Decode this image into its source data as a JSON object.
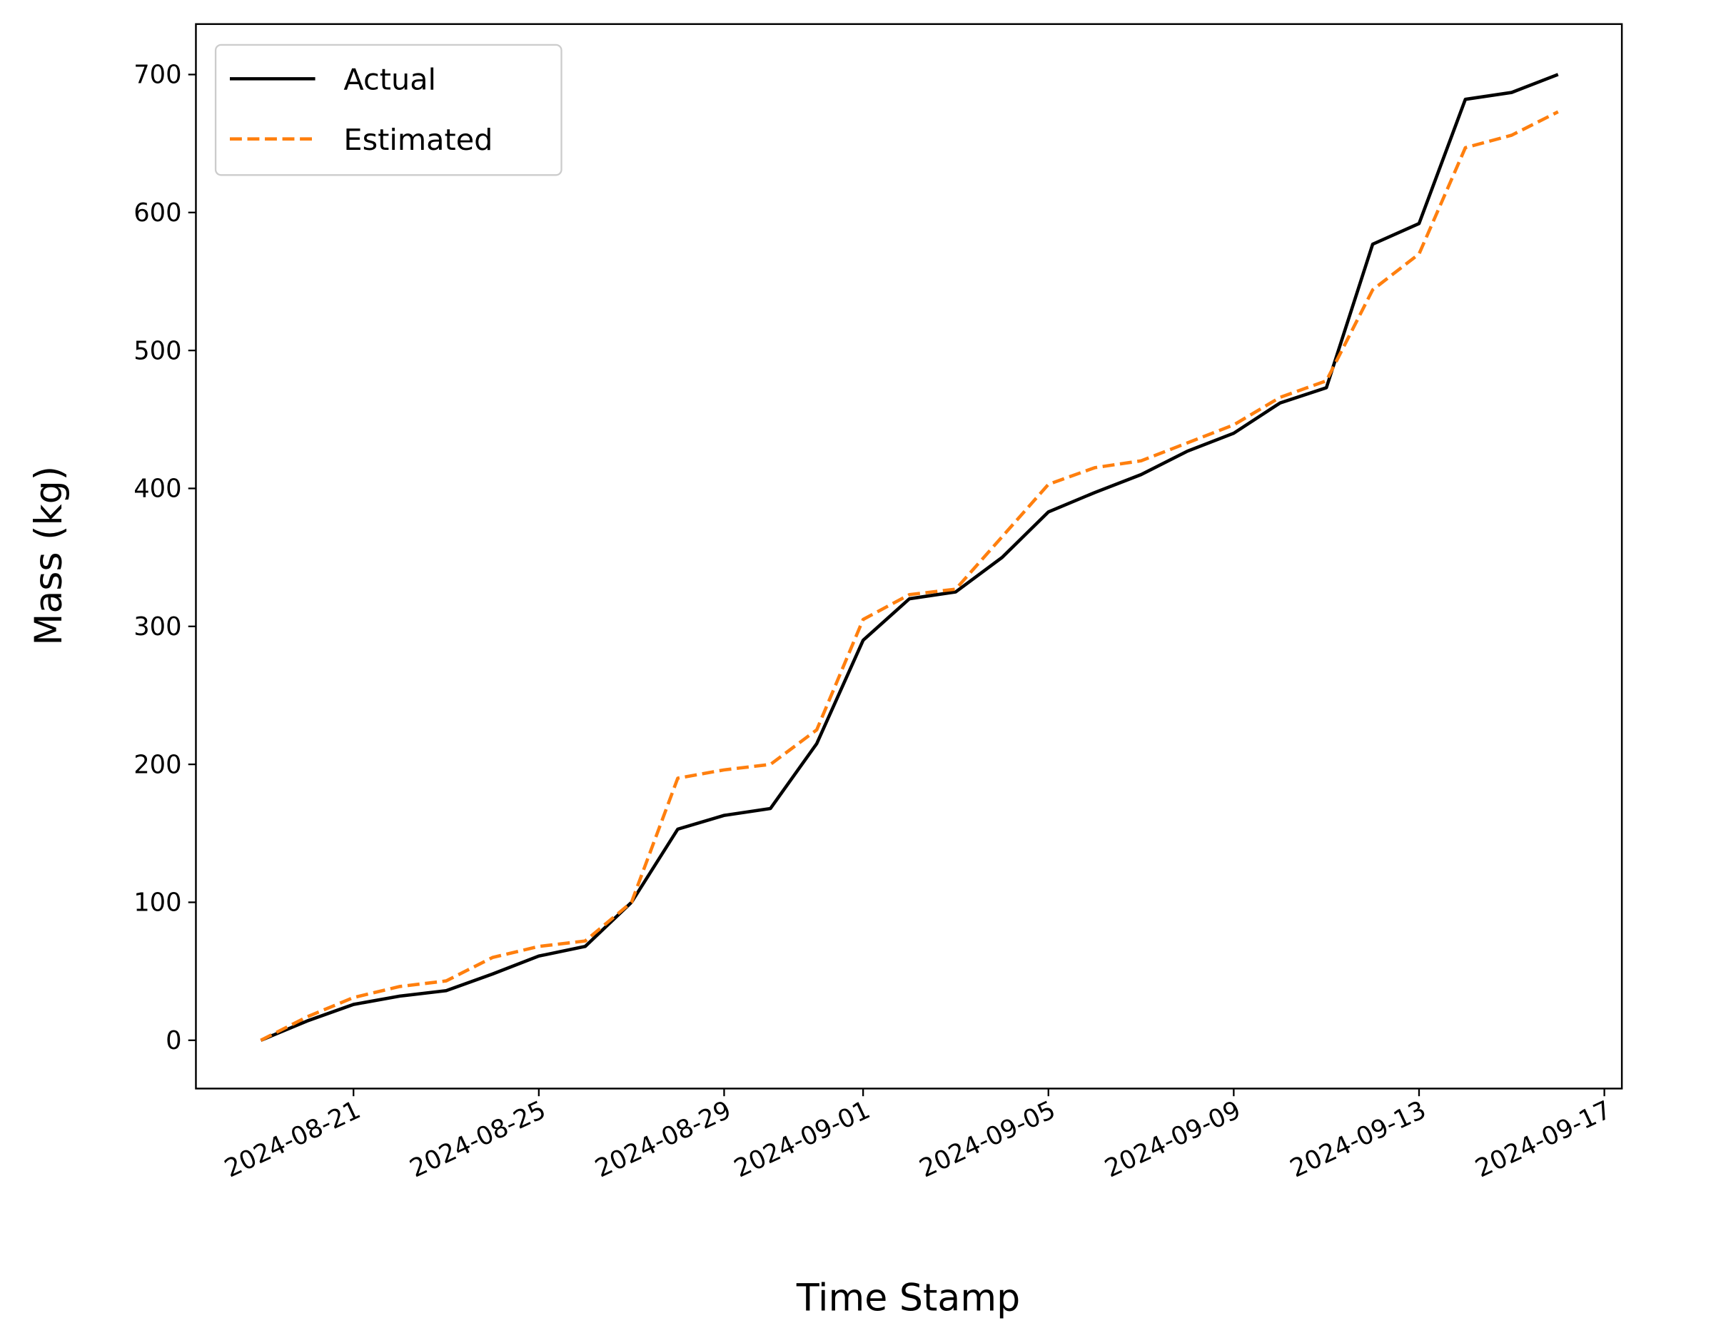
{
  "chart_data": {
    "type": "line",
    "xlabel": "Time Stamp",
    "ylabel": "Mass (kg)",
    "x": [
      "2024-08-19",
      "2024-08-20",
      "2024-08-21",
      "2024-08-22",
      "2024-08-23",
      "2024-08-24",
      "2024-08-25",
      "2024-08-26",
      "2024-08-27",
      "2024-08-28",
      "2024-08-29",
      "2024-08-30",
      "2024-08-31",
      "2024-09-01",
      "2024-09-02",
      "2024-09-03",
      "2024-09-04",
      "2024-09-05",
      "2024-09-06",
      "2024-09-07",
      "2024-09-08",
      "2024-09-09",
      "2024-09-10",
      "2024-09-11",
      "2024-09-12",
      "2024-09-13",
      "2024-09-14",
      "2024-09-15",
      "2024-09-16"
    ],
    "series": [
      {
        "name": "Actual",
        "color": "#000000",
        "dashed": false,
        "values": [
          0,
          14,
          26,
          32,
          36,
          48,
          61,
          68,
          100,
          153,
          163,
          168,
          215,
          290,
          320,
          325,
          350,
          383,
          397,
          410,
          427,
          440,
          462,
          473,
          577,
          592,
          682,
          687,
          700
        ]
      },
      {
        "name": "Estimated",
        "color": "#ff7f0e",
        "dashed": true,
        "values": [
          0,
          17,
          31,
          39,
          43,
          60,
          68,
          72,
          100,
          190,
          196,
          200,
          225,
          305,
          323,
          327,
          365,
          403,
          415,
          420,
          433,
          446,
          466,
          478,
          544,
          570,
          647,
          656,
          673
        ]
      }
    ],
    "xlim": [
      "2024-08-18",
      "2024-09-17"
    ],
    "xticks": [
      "2024-08-21",
      "2024-08-25",
      "2024-08-29",
      "2024-09-01",
      "2024-09-05",
      "2024-09-09",
      "2024-09-13",
      "2024-09-17"
    ],
    "ylim": [
      -35,
      735
    ],
    "yticks": [
      0,
      100,
      200,
      300,
      400,
      500,
      600,
      700
    ],
    "legend": "upper left",
    "grid": false
  }
}
